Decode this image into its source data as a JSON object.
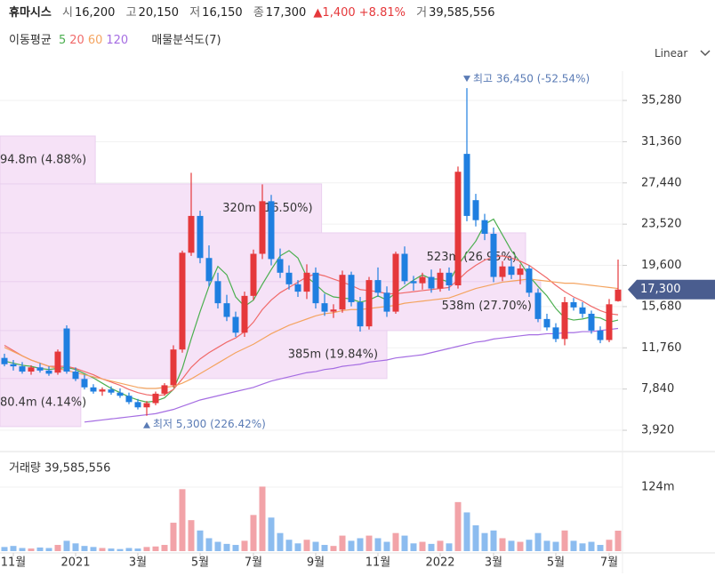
{
  "header": {
    "name": "휴마시스",
    "open": {
      "label": "시",
      "value": "16,200"
    },
    "high": {
      "label": "고",
      "value": "20,150"
    },
    "low": {
      "label": "저",
      "value": "16,150"
    },
    "close": {
      "label": "종",
      "value": "17,300"
    },
    "change": "▲1,400 +8.81%",
    "volume": {
      "label": "거",
      "value": "39,585,556"
    }
  },
  "toolbar": {
    "ma_label": "이동평균",
    "profile_label": "매물분석도(7)",
    "scale": "Linear"
  },
  "chart_data": [
    {
      "type": "candlestick",
      "categories": [
        null,
        "11월",
        null,
        null,
        null,
        null,
        null,
        null,
        "2021",
        null,
        null,
        null,
        null,
        null,
        null,
        "3월",
        null,
        null,
        null,
        null,
        null,
        null,
        "5월",
        null,
        null,
        null,
        null,
        null,
        "7월",
        null,
        null,
        null,
        null,
        null,
        null,
        "9월",
        null,
        null,
        null,
        null,
        null,
        null,
        "11월",
        null,
        null,
        null,
        null,
        null,
        null,
        "2022",
        null,
        null,
        null,
        null,
        null,
        "3월",
        null,
        null,
        null,
        null,
        null,
        null,
        "5월",
        null,
        null,
        null,
        null,
        null,
        "7월",
        null
      ],
      "open": [
        10800,
        10200,
        10000,
        9500,
        9900,
        9600,
        9400,
        13600,
        9500,
        8800,
        8000,
        7600,
        7800,
        7500,
        7200,
        6600,
        6100,
        6500,
        7400,
        8200,
        11600,
        20800,
        24300,
        20300,
        18100,
        16000,
        14700,
        13200,
        16700,
        20700,
        25700,
        20200,
        18900,
        17800,
        17100,
        18900,
        16000,
        15200,
        15400,
        18700,
        16100,
        13800,
        18200,
        17000,
        15200,
        20700,
        18100,
        17900,
        18500,
        17400,
        18900,
        17700,
        30200,
        25800,
        23900,
        22600,
        18500,
        19500,
        18700,
        19300,
        17000,
        14500,
        13700,
        12600,
        16100,
        15600,
        15000,
        13400,
        12500,
        16200
      ],
      "high": [
        11200,
        10600,
        10400,
        10100,
        10300,
        10000,
        11600,
        13900,
        9900,
        9200,
        8300,
        8000,
        8100,
        7900,
        7500,
        6900,
        6700,
        7600,
        8400,
        12000,
        21000,
        28400,
        24800,
        21500,
        18900,
        16800,
        15200,
        17100,
        21100,
        27300,
        26300,
        21200,
        19600,
        18200,
        19700,
        19400,
        16900,
        15900,
        19100,
        19000,
        16600,
        18500,
        19400,
        17600,
        20900,
        21400,
        18600,
        18900,
        19200,
        19300,
        19400,
        29000,
        36450,
        26400,
        24500,
        23200,
        20000,
        20300,
        19700,
        19600,
        17400,
        15000,
        14100,
        16600,
        16500,
        16100,
        15300,
        13800,
        16400,
        20150
      ],
      "low": [
        10000,
        9600,
        9300,
        9200,
        9400,
        9100,
        9200,
        9300,
        8600,
        7800,
        7400,
        7200,
        7300,
        7000,
        6400,
        5900,
        5300,
        6300,
        7200,
        8000,
        11300,
        20500,
        19800,
        17600,
        15500,
        14300,
        12800,
        12800,
        16300,
        20200,
        19600,
        18400,
        17300,
        16600,
        16400,
        15500,
        14800,
        14600,
        15100,
        15700,
        13300,
        13500,
        16600,
        14700,
        15000,
        17800,
        17200,
        17300,
        17000,
        17100,
        17200,
        17400,
        23800,
        23300,
        22000,
        18000,
        18100,
        18300,
        17800,
        16600,
        14200,
        13400,
        12300,
        12000,
        15300,
        14600,
        13100,
        12200,
        12300,
        16150
      ],
      "close": [
        10200,
        10000,
        9500,
        9900,
        9600,
        9300,
        11400,
        9500,
        8800,
        8000,
        7600,
        7800,
        7500,
        7200,
        6600,
        6100,
        6500,
        7400,
        8200,
        11600,
        20800,
        24300,
        20300,
        18100,
        16000,
        14700,
        13200,
        16700,
        20700,
        25700,
        20200,
        18900,
        17800,
        17100,
        18900,
        16000,
        15200,
        15400,
        18700,
        16100,
        13800,
        18200,
        17000,
        15200,
        20700,
        18100,
        17900,
        18500,
        17400,
        18900,
        17700,
        28500,
        24300,
        23900,
        22600,
        18500,
        19500,
        18700,
        19300,
        17000,
        14500,
        13700,
        12600,
        16100,
        15600,
        15000,
        13400,
        12500,
        15900,
        17300
      ],
      "up_color": "#e5383b",
      "down_color": "#1f7fe0",
      "series": [
        {
          "name": "5",
          "color": "#4caf50",
          "values": [
            10500,
            10300,
            10100,
            10000,
            9800,
            9700,
            9800,
            9900,
            9700,
            9300,
            8900,
            8400,
            7900,
            7500,
            7100,
            6800,
            6600,
            6700,
            7000,
            7800,
            9800,
            12600,
            15200,
            17600,
            19500,
            18700,
            16600,
            15700,
            16300,
            17800,
            19200,
            20500,
            21000,
            20300,
            18500,
            17800,
            17000,
            16600,
            16500,
            16400,
            16100,
            16300,
            16700,
            16300,
            17000,
            17600,
            18200,
            18700,
            18300,
            18300,
            18000,
            19600,
            20800,
            21900,
            23500,
            24000,
            22500,
            21000,
            19900,
            18600,
            17600,
            16700,
            15500,
            14600,
            14400,
            14500,
            14700,
            14600,
            14200,
            14400
          ]
        },
        {
          "name": "20",
          "color": "#f06a6a",
          "values": [
            12000,
            11500,
            11000,
            10600,
            10300,
            10000,
            10000,
            10000,
            9800,
            9500,
            9200,
            8800,
            8500,
            8200,
            7800,
            7500,
            7300,
            7200,
            7300,
            7800,
            8800,
            9900,
            10700,
            11300,
            11800,
            12300,
            12700,
            13300,
            14200,
            15400,
            16300,
            17000,
            17500,
            18000,
            18500,
            18800,
            18600,
            18300,
            18000,
            17700,
            17300,
            17200,
            17100,
            16900,
            16900,
            17000,
            17100,
            17200,
            17300,
            17400,
            17500,
            18200,
            19000,
            19600,
            20100,
            20400,
            20500,
            20300,
            20000,
            19600,
            19000,
            18400,
            17700,
            17100,
            16600,
            16200,
            15700,
            15300,
            15000,
            14900
          ]
        },
        {
          "name": "60",
          "color": "#f4a460",
          "values": [
            11800,
            11400,
            11000,
            10600,
            10300,
            10000,
            9800,
            9600,
            9400,
            9200,
            9000,
            8800,
            8600,
            8400,
            8200,
            8000,
            7900,
            7900,
            8000,
            8100,
            8400,
            8800,
            9300,
            9800,
            10300,
            10800,
            11300,
            11700,
            12100,
            12600,
            13100,
            13500,
            13900,
            14200,
            14500,
            14800,
            15000,
            15100,
            15300,
            15400,
            15400,
            15500,
            15600,
            15700,
            15800,
            16000,
            16100,
            16200,
            16300,
            16400,
            16500,
            16800,
            17100,
            17400,
            17600,
            17800,
            18000,
            18100,
            18200,
            18300,
            18200,
            18100,
            18000,
            17900,
            17900,
            17800,
            17700,
            17600,
            17500,
            17400
          ]
        },
        {
          "name": "120",
          "color": "#a56de2",
          "values": [
            null,
            null,
            null,
            null,
            null,
            null,
            null,
            null,
            null,
            4700,
            4800,
            4900,
            5000,
            5100,
            5200,
            5300,
            5400,
            5500,
            5700,
            5900,
            6200,
            6500,
            6800,
            7000,
            7200,
            7400,
            7600,
            7800,
            8000,
            8300,
            8600,
            8800,
            9000,
            9200,
            9400,
            9500,
            9700,
            9800,
            10000,
            10100,
            10200,
            10400,
            10500,
            10600,
            10800,
            10900,
            11000,
            11100,
            11300,
            11500,
            11700,
            11900,
            12100,
            12300,
            12400,
            12600,
            12700,
            12800,
            12900,
            13000,
            13000,
            13100,
            13100,
            13200,
            13200,
            13300,
            13300,
            13400,
            13500,
            13600
          ]
        }
      ],
      "ylim": [
        2150,
        38070
      ],
      "yticks": [
        {
          "value": 35280,
          "label": "35,280"
        },
        {
          "value": 31360,
          "label": "31,360"
        },
        {
          "value": 27440,
          "label": "27,440"
        },
        {
          "value": 23520,
          "label": "23,520"
        },
        {
          "value": 19600,
          "label": "19,600"
        },
        {
          "value": 15680,
          "label": "15,680"
        },
        {
          "value": 11760,
          "label": "11,760"
        },
        {
          "value": 7840,
          "label": "7,840"
        },
        {
          "value": 3920,
          "label": "3,920"
        }
      ],
      "grid": true,
      "high_label": "최고 36,450 (-52.54%)",
      "low_label": "최저 5,300 (226.42%)",
      "price_tag": {
        "value": 17300,
        "label": "17,300"
      },
      "volume_profile": {
        "bins": [
          31900,
          27340,
          22690,
          18050,
          13400,
          8840,
          4270
        ],
        "values": [
          94.8,
          320,
          523,
          538,
          385,
          80.4
        ],
        "value_labels": [
          "94.8m (4.88%)",
          "320m (16.50%)",
          "523m (26.95%)",
          "538m (27.70%)",
          "385m (19.84%)",
          "80.4m (4.14%)"
        ],
        "color": "#f6e2f7"
      }
    },
    {
      "type": "bar",
      "title": "거래량 39,585,556",
      "values": [
        8,
        10,
        6,
        5,
        7,
        6,
        12,
        20,
        15,
        10,
        8,
        6,
        5,
        4,
        6,
        5,
        8,
        9,
        12,
        55,
        120,
        60,
        40,
        25,
        18,
        14,
        12,
        20,
        70,
        125,
        65,
        35,
        22,
        15,
        22,
        18,
        12,
        10,
        30,
        20,
        25,
        30,
        25,
        18,
        35,
        30,
        15,
        18,
        14,
        20,
        15,
        95,
        75,
        50,
        35,
        40,
        25,
        20,
        18,
        22,
        35,
        20,
        18,
        40,
        20,
        15,
        18,
        12,
        22,
        39.585556
      ],
      "up_color": "#f2a3a8",
      "down_color": "#8cbcef",
      "ylim": [
        0,
        186
      ],
      "yticks": [
        {
          "value": 124,
          "label": "124m"
        }
      ]
    }
  ]
}
